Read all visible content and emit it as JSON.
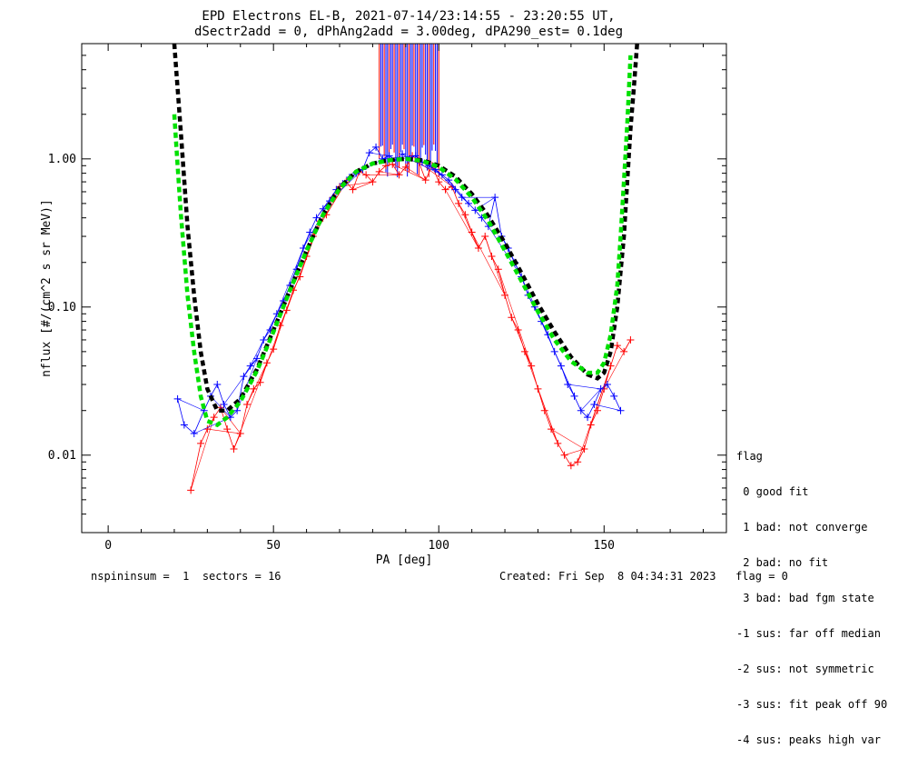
{
  "chart_data": {
    "type": "line",
    "title": "EPD Electrons EL-B, 2021-07-14/23:14:55 - 23:20:55 UT,",
    "subtitle": "dSectr2add = 0, dPhAng2add = 3.00deg, dPA290_est=   0.1deg",
    "xlabel": "PA [deg]",
    "ylabel": "nflux [#/(cm^2 s sr MeV)]",
    "xlim": [
      -8,
      187
    ],
    "ylim": [
      0.003,
      6
    ],
    "yscale": "log",
    "x_ticks": [
      0,
      50,
      100,
      150
    ],
    "x_tick_labels": [
      "0",
      "50",
      "100",
      "150"
    ],
    "y_ticks": [
      0.01,
      0.1,
      1.0
    ],
    "y_tick_labels": [
      "0.01",
      "0.10",
      "1.00"
    ],
    "series": [
      {
        "color": "#000000",
        "style": "dashed",
        "x": [
          20,
          21,
          22,
          24,
          26,
          28,
          30,
          33,
          36,
          40,
          45,
          50,
          55,
          60,
          65,
          70,
          75,
          80,
          85,
          90,
          95,
          100,
          105,
          110,
          115,
          120,
          125,
          130,
          135,
          140,
          145,
          148,
          150,
          152,
          154,
          156,
          157,
          158,
          159,
          160
        ],
        "y": [
          6.0,
          3.0,
          1.5,
          0.35,
          0.12,
          0.05,
          0.028,
          0.02,
          0.02,
          0.024,
          0.038,
          0.07,
          0.13,
          0.24,
          0.42,
          0.64,
          0.82,
          0.93,
          0.98,
          1.0,
          0.98,
          0.9,
          0.76,
          0.58,
          0.41,
          0.27,
          0.17,
          0.105,
          0.068,
          0.046,
          0.035,
          0.033,
          0.036,
          0.05,
          0.1,
          0.3,
          0.7,
          1.6,
          3.0,
          6.0
        ]
      },
      {
        "color": "#00e000",
        "style": "dashed",
        "x": [
          20,
          21,
          22,
          24,
          26,
          28,
          30,
          33,
          36,
          40,
          45,
          50,
          55,
          60,
          65,
          70,
          75,
          80,
          85,
          90,
          95,
          100,
          105,
          110,
          115,
          120,
          125,
          130,
          135,
          140,
          145,
          148,
          150,
          152,
          154,
          155,
          156,
          157,
          158
        ],
        "y": [
          2.0,
          0.9,
          0.42,
          0.12,
          0.05,
          0.025,
          0.017,
          0.016,
          0.018,
          0.023,
          0.037,
          0.068,
          0.13,
          0.24,
          0.42,
          0.63,
          0.82,
          0.93,
          0.98,
          1.0,
          0.97,
          0.88,
          0.73,
          0.55,
          0.38,
          0.24,
          0.15,
          0.093,
          0.06,
          0.043,
          0.036,
          0.036,
          0.042,
          0.065,
          0.14,
          0.3,
          0.7,
          1.7,
          5.0
        ]
      }
    ],
    "scatter_red": {
      "color": "#ff0000",
      "x": [
        25,
        28,
        30,
        32,
        34,
        36,
        38,
        40,
        42,
        44,
        46,
        48,
        50,
        52,
        54,
        56,
        58,
        60,
        62,
        64,
        66,
        68,
        70,
        72,
        74,
        76,
        78,
        80,
        82,
        84,
        86,
        88,
        90,
        92,
        94,
        96,
        98,
        100,
        102,
        104,
        106,
        108,
        110,
        112,
        114,
        116,
        118,
        120,
        122,
        124,
        126,
        128,
        130,
        132,
        134,
        136,
        138,
        140,
        142,
        144,
        146,
        148,
        150,
        152,
        154,
        156,
        158
      ],
      "y": [
        0.0058,
        0.012,
        0.015,
        0.018,
        0.021,
        0.015,
        0.011,
        0.014,
        0.022,
        0.028,
        0.031,
        0.042,
        0.052,
        0.075,
        0.095,
        0.13,
        0.16,
        0.22,
        0.3,
        0.38,
        0.42,
        0.55,
        0.65,
        0.7,
        0.62,
        0.82,
        0.78,
        0.7,
        0.82,
        0.9,
        0.92,
        0.78,
        0.88,
        1.05,
        0.95,
        0.72,
        0.9,
        0.7,
        0.62,
        0.65,
        0.5,
        0.42,
        0.32,
        0.25,
        0.3,
        0.22,
        0.18,
        0.12,
        0.085,
        0.07,
        0.05,
        0.04,
        0.028,
        0.02,
        0.015,
        0.012,
        0.01,
        0.0085,
        0.009,
        0.011,
        0.016,
        0.02,
        0.028,
        0.04,
        0.055,
        0.05,
        0.06
      ]
    },
    "scatter_blue": {
      "color": "#0000ff",
      "x": [
        21,
        23,
        26,
        29,
        31,
        33,
        35,
        37,
        39,
        41,
        43,
        45,
        47,
        49,
        51,
        53,
        55,
        57,
        59,
        61,
        63,
        65,
        67,
        69,
        71,
        73,
        75,
        77,
        79,
        81,
        83,
        85,
        87,
        89,
        91,
        93,
        95,
        97,
        99,
        101,
        103,
        105,
        107,
        109,
        111,
        113,
        115,
        117,
        119,
        121,
        123,
        125,
        127,
        129,
        131,
        133,
        135,
        137,
        139,
        141,
        143,
        145,
        147,
        149,
        151,
        153,
        155
      ],
      "y": [
        0.024,
        0.016,
        0.014,
        0.02,
        0.025,
        0.03,
        0.022,
        0.018,
        0.02,
        0.034,
        0.04,
        0.045,
        0.06,
        0.07,
        0.09,
        0.11,
        0.14,
        0.18,
        0.25,
        0.32,
        0.4,
        0.46,
        0.52,
        0.62,
        0.68,
        0.75,
        0.8,
        0.85,
        1.1,
        1.2,
        1.0,
        1.05,
        0.98,
        1.08,
        1.0,
        1.05,
        0.95,
        0.9,
        0.85,
        0.78,
        0.72,
        0.62,
        0.55,
        0.5,
        0.45,
        0.4,
        0.35,
        0.55,
        0.3,
        0.25,
        0.2,
        0.16,
        0.12,
        0.1,
        0.08,
        0.065,
        0.05,
        0.04,
        0.03,
        0.025,
        0.02,
        0.018,
        0.022,
        0.028,
        0.03,
        0.025,
        0.02
      ]
    },
    "spike_region": {
      "x_start": 82,
      "x_end": 100
    }
  },
  "legend": {
    "title": "flag",
    "entries": [
      " 0 good fit",
      " 1 bad: not converge",
      " 2 bad: no fit",
      " 3 bad: bad fgm state",
      "-1 sus: far off median",
      "-2 sus: not symmetric",
      "-3 sus: fit peak off 90",
      "-4 sus: peaks high var"
    ]
  },
  "footer": {
    "left": "nspininsum =  1  sectors = 16",
    "right": "Created: Fri Sep  8 04:34:31 2023   flag = 0"
  }
}
